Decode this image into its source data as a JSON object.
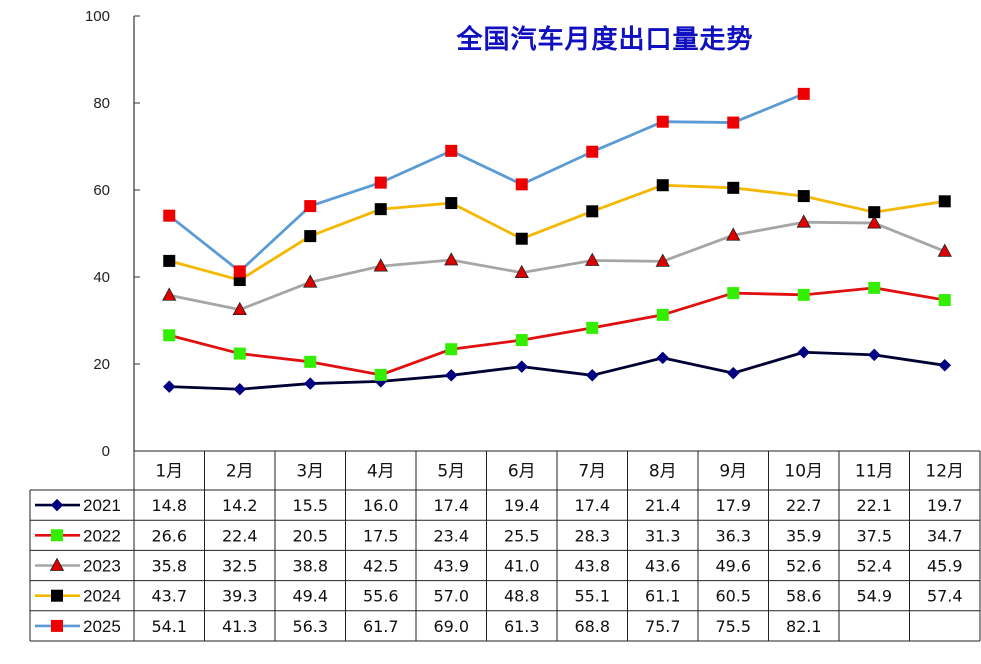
{
  "chart_data": {
    "type": "line",
    "title": "全国汽车月度出口量走势",
    "categories": [
      "1月",
      "2月",
      "3月",
      "4月",
      "5月",
      "6月",
      "7月",
      "8月",
      "9月",
      "10月",
      "11月",
      "12月"
    ],
    "ylim": [
      0,
      100
    ],
    "yticks": [
      0,
      20,
      40,
      60,
      80,
      100
    ],
    "grid": false,
    "legend": "data-table-left",
    "series": [
      {
        "name": "2021",
        "color": "#000033",
        "marker": "diamond",
        "marker_color": "#000080",
        "values": [
          14.8,
          14.2,
          15.5,
          16.0,
          17.4,
          19.4,
          17.4,
          21.4,
          17.9,
          22.7,
          22.1,
          19.7
        ],
        "labels": [
          "14.8",
          "14.2",
          "15.5",
          "16.0",
          "17.4",
          "19.4",
          "17.4",
          "21.4",
          "17.9",
          "22.7",
          "22.1",
          "19.7"
        ]
      },
      {
        "name": "2022",
        "color": "#e01010",
        "marker": "square",
        "marker_color": "#33ee00",
        "values": [
          26.6,
          22.4,
          20.5,
          17.5,
          23.4,
          25.5,
          28.3,
          31.3,
          36.3,
          35.9,
          37.5,
          34.7
        ],
        "labels": [
          "26.6",
          "22.4",
          "20.5",
          "17.5",
          "23.4",
          "25.5",
          "28.3",
          "31.3",
          "36.3",
          "35.9",
          "37.5",
          "34.7"
        ]
      },
      {
        "name": "2023",
        "color": "#a6a6a6",
        "marker": "triangle",
        "marker_color": "#dd0000",
        "values": [
          35.8,
          32.5,
          38.8,
          42.5,
          43.9,
          41.0,
          43.8,
          43.6,
          49.6,
          52.6,
          52.4,
          45.9
        ],
        "labels": [
          "35.8",
          "32.5",
          "38.8",
          "42.5",
          "43.9",
          "41.0",
          "43.8",
          "43.6",
          "49.6",
          "52.6",
          "52.4",
          "45.9"
        ]
      },
      {
        "name": "2024",
        "color": "#f5b800",
        "marker": "square",
        "marker_color": "#000000",
        "values": [
          43.7,
          39.3,
          49.4,
          55.6,
          57.0,
          48.8,
          55.1,
          61.1,
          60.5,
          58.6,
          54.9,
          57.4
        ],
        "labels": [
          "43.7",
          "39.3",
          "49.4",
          "55.6",
          "57.0",
          "48.8",
          "55.1",
          "61.1",
          "60.5",
          "58.6",
          "54.9",
          "57.4"
        ]
      },
      {
        "name": "2025",
        "color": "#5b9bd5",
        "marker": "square",
        "marker_color": "#ee0000",
        "values": [
          54.1,
          41.3,
          56.3,
          61.7,
          69.0,
          61.3,
          68.8,
          75.7,
          75.5,
          82.1,
          null,
          null
        ],
        "labels": [
          "54.1",
          "41.3",
          "56.3",
          "61.7",
          "69.0",
          "61.3",
          "68.8",
          "75.7",
          "75.5",
          "82.1",
          "",
          ""
        ]
      }
    ]
  }
}
